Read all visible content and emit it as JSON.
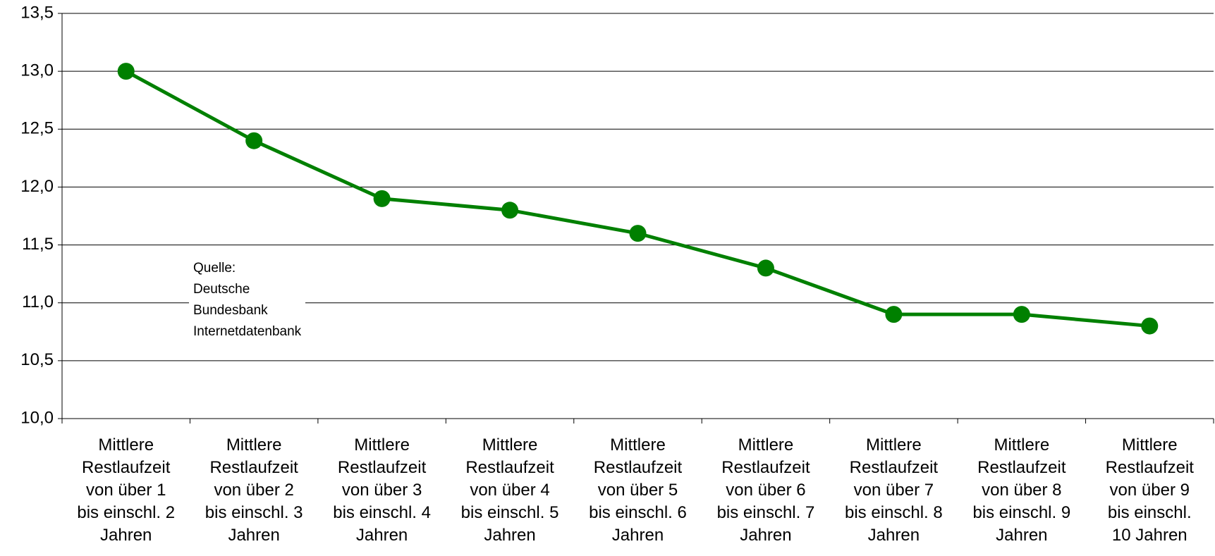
{
  "chart_data": {
    "type": "line",
    "categories": [
      "Mittlere\nRestlaufzeit\nvon über 1\nbis einschl. 2\nJahren",
      "Mittlere\nRestlaufzeit\nvon über 2\nbis einschl. 3\nJahren",
      "Mittlere\nRestlaufzeit\nvon über 3\nbis einschl. 4\nJahren",
      "Mittlere\nRestlaufzeit\nvon über 4\nbis einschl. 5\nJahren",
      "Mittlere\nRestlaufzeit\nvon über 5\nbis einschl. 6\nJahren",
      "Mittlere\nRestlaufzeit\nvon über 6\nbis einschl. 7\nJahren",
      "Mittlere\nRestlaufzeit\nvon über 7\nbis einschl. 8\nJahren",
      "Mittlere\nRestlaufzeit\nvon über 8\nbis einschl. 9\nJahren",
      "Mittlere\nRestlaufzeit\nvon über 9\nbis einschl.\n10 Jahren"
    ],
    "values": [
      13.0,
      12.4,
      11.9,
      11.8,
      11.6,
      11.3,
      10.9,
      10.9,
      10.8
    ],
    "color": "#008000",
    "ylim": [
      10.0,
      13.5
    ],
    "yticks": [
      {
        "value": 10.0,
        "label": "10,0"
      },
      {
        "value": 10.5,
        "label": "10,5"
      },
      {
        "value": 11.0,
        "label": "11,0"
      },
      {
        "value": 11.5,
        "label": "11,5"
      },
      {
        "value": 12.0,
        "label": "12,0"
      },
      {
        "value": 12.5,
        "label": "12,5"
      },
      {
        "value": 13.0,
        "label": "13,0"
      },
      {
        "value": 13.5,
        "label": "13,5"
      }
    ],
    "grid": true,
    "annotation": "Quelle:\nDeutsche\nBundesbank\nInternetdatenbank"
  }
}
